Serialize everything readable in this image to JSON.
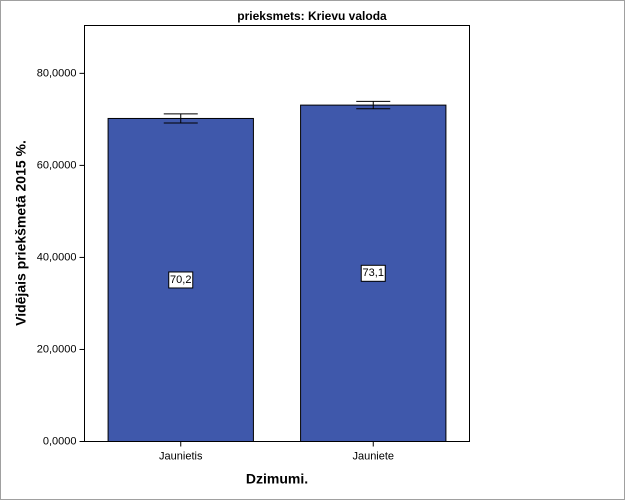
{
  "chart_data": {
    "type": "bar",
    "title": "prieksmets: Krievu valoda",
    "x_label": "Dzimumi.",
    "y_label": "Vidējais priekšmetā 2015 %.",
    "categories": [
      "Jaunietis",
      "Jauniete"
    ],
    "values": [
      70.2,
      73.1
    ],
    "value_labels": [
      "70,2",
      "73,1"
    ],
    "errors": [
      1.0,
      0.8
    ],
    "color": "#3f58ab",
    "ylim": [
      0,
      90.4
    ],
    "yticks": [
      {
        "value": 0,
        "label": "0,0000"
      },
      {
        "value": 20,
        "label": "20,0000"
      },
      {
        "value": 40,
        "label": "40,0000"
      },
      {
        "value": 60,
        "label": "60,0000"
      },
      {
        "value": 80,
        "label": "80,0000"
      }
    ]
  }
}
